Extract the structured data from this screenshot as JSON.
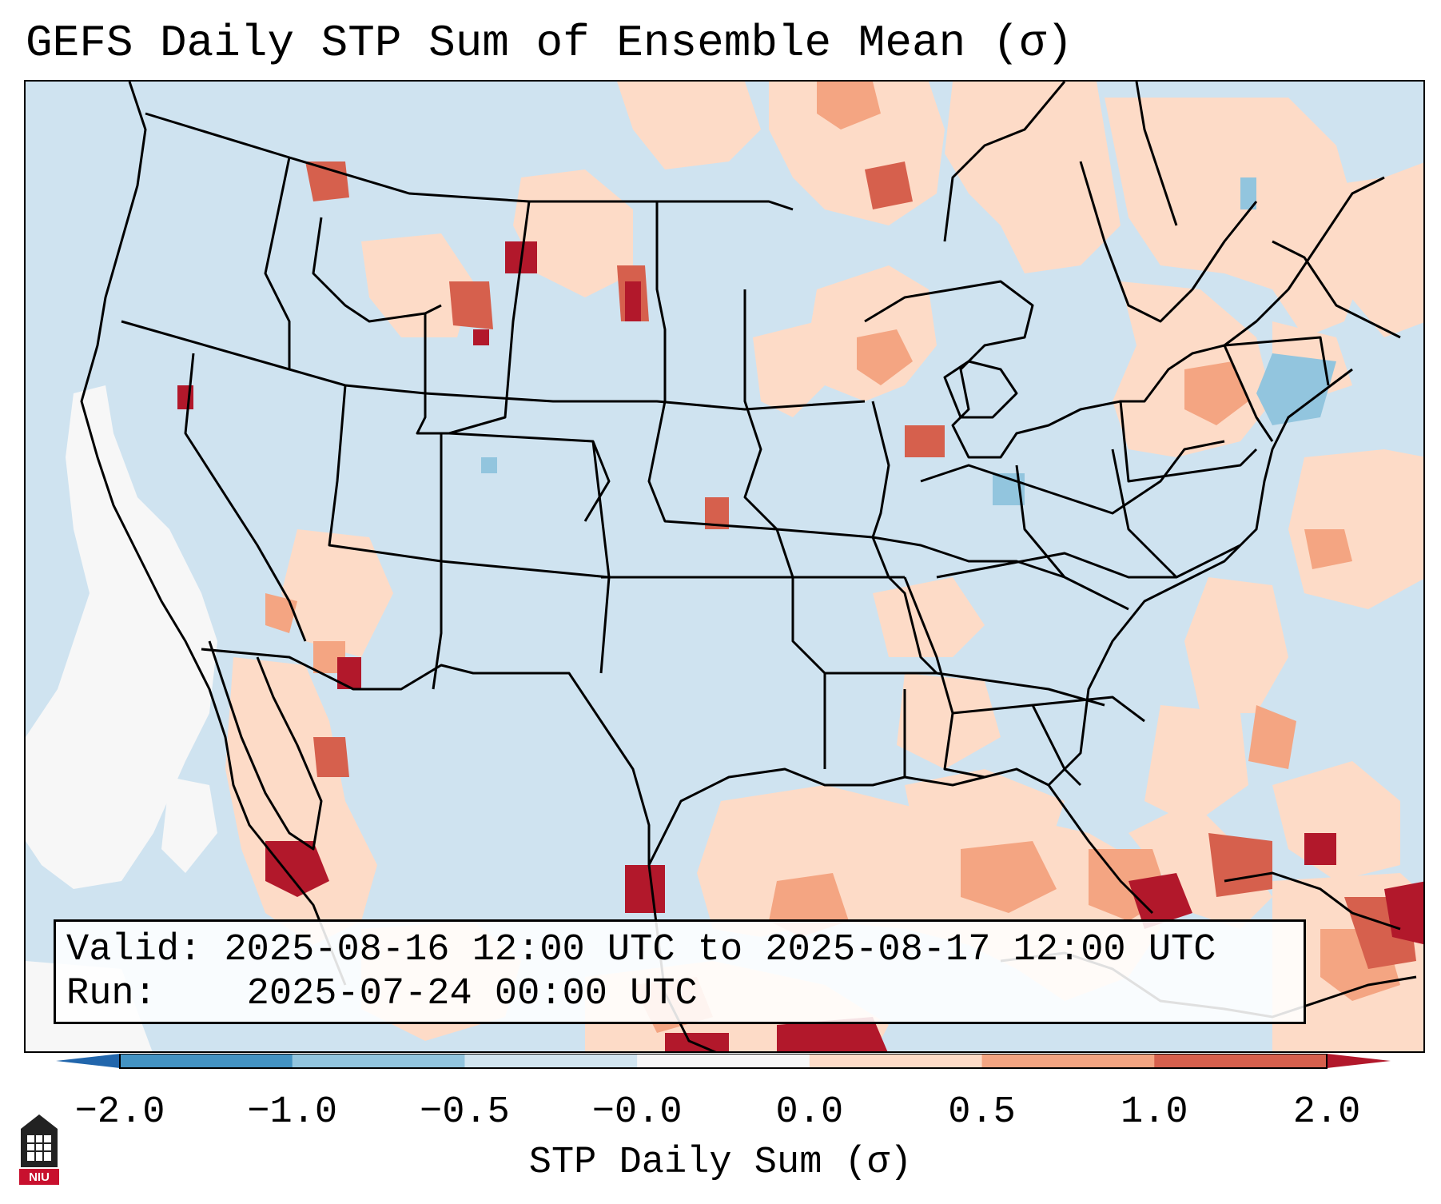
{
  "title": "GEFS Daily STP Sum of Ensemble Mean (σ)",
  "info": {
    "valid_label": "Valid:",
    "valid_text": "2025-08-16 12:00 UTC to 2025-08-17 12:00 UTC",
    "run_label": "Run:",
    "run_text": "2025-07-24 00:00 UTC"
  },
  "colorbar": {
    "label": "STP Daily Sum (σ)",
    "ticks": [
      "−2.0",
      "−1.0",
      "−0.5",
      "−0.0",
      "0.0",
      "0.5",
      "1.0",
      "2.0"
    ],
    "bins": [
      {
        "range": "−2.0 to −1.0",
        "color": "#4393c3"
      },
      {
        "range": "−1.0 to −0.5",
        "color": "#92c5de"
      },
      {
        "range": "−0.5 to −0.0",
        "color": "#d1e5f0"
      },
      {
        "range": "−0.0 to 0.0",
        "color": "#f7f7f7"
      },
      {
        "range": "0.0 to 0.5",
        "color": "#fddbc7"
      },
      {
        "range": "0.5 to 1.0",
        "color": "#f4a582"
      },
      {
        "range": "1.0 to 2.0",
        "color": "#d6604d"
      }
    ],
    "under_color": "#2166ac",
    "over_color": "#b2182b"
  },
  "logo": {
    "text": "NIU",
    "icon": "niu-tower-icon"
  }
}
